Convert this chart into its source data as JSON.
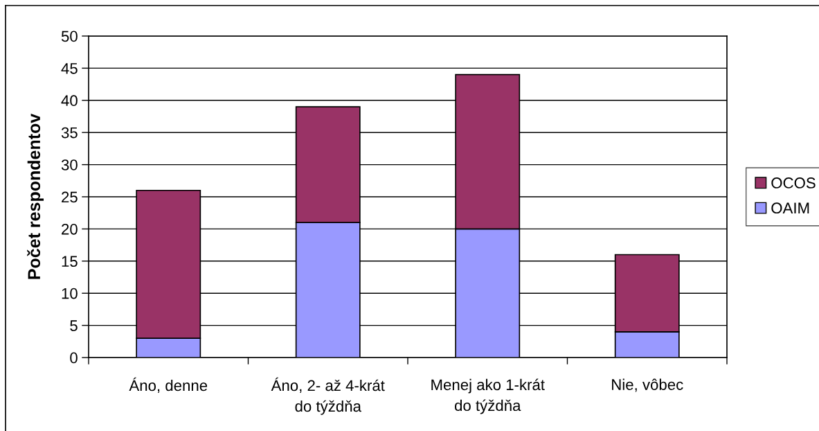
{
  "chart_data": {
    "type": "bar",
    "stacked": true,
    "ylabel": "Počet respondentov",
    "categories": [
      "Áno, denne",
      "Áno, 2- až 4-krát\ndo týždňa",
      "Menej ako 1-krát\ndo týždňa",
      "Nie, vôbec"
    ],
    "series": [
      {
        "name": "OAIM",
        "color": "#9999ff",
        "values": [
          3,
          21,
          20,
          4
        ]
      },
      {
        "name": "OCOS",
        "color": "#993366",
        "values": [
          23,
          18,
          24,
          12
        ]
      }
    ],
    "ylim": [
      0,
      50
    ],
    "yticks": [
      0,
      5,
      10,
      15,
      20,
      25,
      30,
      35,
      40,
      45,
      50
    ],
    "grid": "y",
    "legend": "right"
  }
}
